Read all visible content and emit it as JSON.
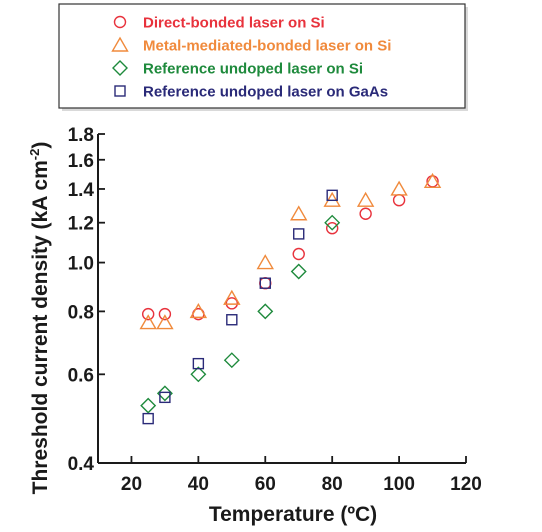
{
  "chart_data": {
    "type": "scatter",
    "xlabel": "Temperature (ºC)",
    "ylabel": "Threshold current density (kA cm",
    "ylabel_sup": "-2",
    "ylabel_close": ")",
    "xlim": [
      10,
      120
    ],
    "ylim": [
      0.4,
      1.8
    ],
    "y_scale": "log",
    "grid": false,
    "legend_position": "top",
    "x_ticks": [
      20,
      40,
      60,
      80,
      100,
      120
    ],
    "x_tick_labels": [
      "20",
      "40",
      "60",
      "80",
      "100",
      "120"
    ],
    "y_ticks": [
      0.4,
      0.6,
      0.8,
      1.0,
      1.2,
      1.4,
      1.6,
      1.8
    ],
    "y_tick_labels": [
      "0.4",
      "0.6",
      "0.8",
      "1.0",
      "1.2",
      "1.4",
      "1.6",
      "1.8"
    ],
    "series": [
      {
        "name": "Direct-bonded laser on Si",
        "marker": "circle",
        "color": "#e8323c",
        "points": [
          [
            25,
            0.79
          ],
          [
            30,
            0.79
          ],
          [
            40,
            0.79
          ],
          [
            50,
            0.83
          ],
          [
            60,
            0.91
          ],
          [
            70,
            1.04
          ],
          [
            80,
            1.17
          ],
          [
            90,
            1.25
          ],
          [
            100,
            1.33
          ],
          [
            110,
            1.45
          ]
        ]
      },
      {
        "name": "Metal-mediated-bonded laser on Si",
        "marker": "triangle",
        "color": "#f08a3c",
        "points": [
          [
            25,
            0.76
          ],
          [
            30,
            0.76
          ],
          [
            40,
            0.8
          ],
          [
            50,
            0.85
          ],
          [
            60,
            1.0
          ],
          [
            70,
            1.25
          ],
          [
            80,
            1.33
          ],
          [
            90,
            1.33
          ],
          [
            100,
            1.4
          ],
          [
            110,
            1.45
          ]
        ]
      },
      {
        "name": "Reference undoped laser on Si",
        "marker": "diamond",
        "color": "#1e8a3c",
        "points": [
          [
            25,
            0.52
          ],
          [
            30,
            0.55
          ],
          [
            40,
            0.6
          ],
          [
            50,
            0.64
          ],
          [
            60,
            0.8
          ],
          [
            70,
            0.96
          ],
          [
            80,
            1.2
          ]
        ]
      },
      {
        "name": "Reference undoped laser on GaAs",
        "marker": "square",
        "color": "#2a2a78",
        "points": [
          [
            25,
            0.49
          ],
          [
            30,
            0.54
          ],
          [
            40,
            0.63
          ],
          [
            50,
            0.77
          ],
          [
            60,
            0.91
          ],
          [
            70,
            1.14
          ],
          [
            80,
            1.36
          ]
        ]
      }
    ]
  }
}
